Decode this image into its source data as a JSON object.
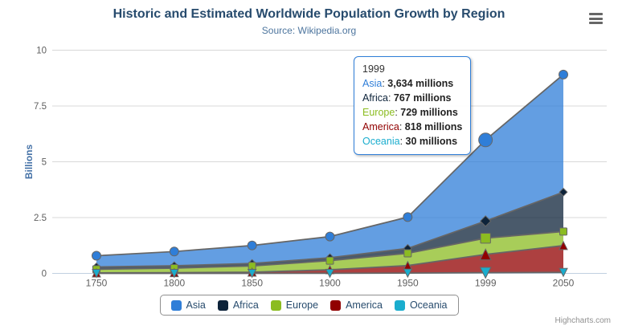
{
  "title": "Historic and Estimated Worldwide Population Growth by Region",
  "subtitle": "Source: Wikipedia.org",
  "credits": "Highcharts.com",
  "yaxis": {
    "title": "Billions",
    "ticks": [
      0,
      2.5,
      5,
      7.5,
      10
    ]
  },
  "xaxis": {
    "categories": [
      "1750",
      "1800",
      "1850",
      "1900",
      "1950",
      "1999",
      "2050"
    ]
  },
  "tooltip": {
    "header": "1999",
    "border_color": "#2f7ed8",
    "rows": [
      {
        "name": "Asia",
        "value": "3,634 millions"
      },
      {
        "name": "Africa",
        "value": "767 millions"
      },
      {
        "name": "Europe",
        "value": "729 millions"
      },
      {
        "name": "America",
        "value": "818 millions"
      },
      {
        "name": "Oceania",
        "value": "30 millions"
      }
    ]
  },
  "chart_data": {
    "type": "area",
    "stacked": true,
    "title": "Historic and Estimated Worldwide Population Growth by Region",
    "subtitle": "Source: Wikipedia.org",
    "xlabel": "",
    "ylabel": "Billions",
    "ylim": [
      0,
      10
    ],
    "grid": true,
    "legend_position": "bottom",
    "values_unit": "millions",
    "categories": [
      "1750",
      "1800",
      "1850",
      "1900",
      "1950",
      "1999",
      "2050"
    ],
    "hover_category": "1999",
    "hover_index": 5,
    "series": [
      {
        "name": "Asia",
        "color": "#2f7ed8",
        "marker": "circle",
        "values": [
          502,
          635,
          809,
          947,
          1402,
          3634,
          5268
        ]
      },
      {
        "name": "Africa",
        "color": "#0d233a",
        "marker": "diamond",
        "values": [
          106,
          107,
          111,
          133,
          221,
          767,
          1766
        ]
      },
      {
        "name": "Europe",
        "color": "#8bbc21",
        "marker": "square",
        "values": [
          163,
          203,
          276,
          408,
          547,
          729,
          628
        ]
      },
      {
        "name": "America",
        "color": "#910000",
        "marker": "triangle",
        "values": [
          18,
          31,
          54,
          156,
          339,
          818,
          1201
        ]
      },
      {
        "name": "Oceania",
        "color": "#1aadce",
        "marker": "triangle-down",
        "values": [
          2,
          2,
          2,
          6,
          13,
          30,
          46
        ]
      }
    ]
  }
}
